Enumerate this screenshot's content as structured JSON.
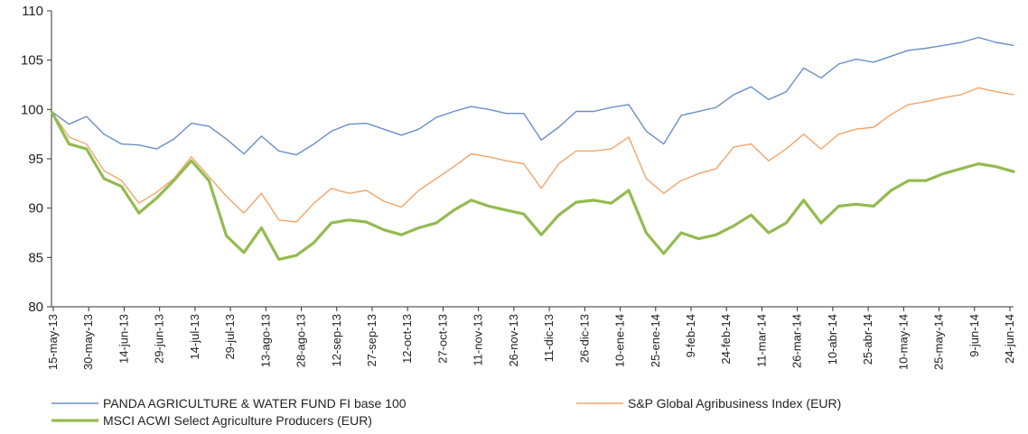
{
  "chart_data": {
    "type": "line",
    "title": "",
    "xlabel": "",
    "ylabel": "",
    "ylim": [
      80,
      110
    ],
    "yticks": [
      "80",
      "85",
      "90",
      "95",
      "100",
      "105",
      "110"
    ],
    "grid": false,
    "legend_position": "bottom",
    "x_labels": [
      "15-may-13",
      "30-may-13",
      "14-jun-13",
      "29-jun-13",
      "14-jul-13",
      "29-jul-13",
      "13-ago-13",
      "28-ago-13",
      "12-sep-13",
      "27-sep-13",
      "12-oct-13",
      "27-oct-13",
      "11-nov-13",
      "26-nov-13",
      "11-dic-13",
      "26-dic-13",
      "10-ene-14",
      "25-ene-14",
      "9-feb-14",
      "24-feb-14",
      "11-mar-14",
      "26-mar-14",
      "10-abr-14",
      "25-abr-14",
      "10-may-14",
      "25-may-14",
      "9-jun-14",
      "24-jun-14"
    ],
    "x": [
      "15-may-13",
      "22-may-13",
      "30-may-13",
      "7-jun-13",
      "14-jun-13",
      "22-jun-13",
      "29-jun-13",
      "6-jul-13",
      "14-jul-13",
      "22-jul-13",
      "29-jul-13",
      "6-ago-13",
      "13-ago-13",
      "21-ago-13",
      "28-ago-13",
      "5-sep-13",
      "12-sep-13",
      "20-sep-13",
      "27-sep-13",
      "5-oct-13",
      "12-oct-13",
      "20-oct-13",
      "27-oct-13",
      "4-nov-13",
      "11-nov-13",
      "19-nov-13",
      "26-nov-13",
      "4-dic-13",
      "11-dic-13",
      "19-dic-13",
      "26-dic-13",
      "3-ene-14",
      "10-ene-14",
      "18-ene-14",
      "25-ene-14",
      "2-feb-14",
      "9-feb-14",
      "17-feb-14",
      "24-feb-14",
      "4-mar-14",
      "11-mar-14",
      "19-mar-14",
      "26-mar-14",
      "3-abr-14",
      "10-abr-14",
      "18-abr-14",
      "25-abr-14",
      "3-may-14",
      "10-may-14",
      "18-may-14",
      "25-may-14",
      "2-jun-14",
      "9-jun-14",
      "17-jun-14",
      "24-jun-14",
      "30-jun-14"
    ],
    "series": [
      {
        "name": "PANDA AGRICULTURE & WATER FUND FI base 100",
        "color": "#6a8ec7",
        "width": 1.4,
        "values": [
          99.8,
          98.5,
          99.3,
          97.5,
          96.5,
          96.4,
          96.0,
          97.0,
          98.6,
          98.3,
          97.0,
          95.5,
          97.3,
          95.8,
          95.4,
          96.5,
          97.8,
          98.5,
          98.6,
          98.0,
          97.4,
          98.0,
          99.2,
          99.8,
          100.3,
          100.0,
          99.6,
          99.6,
          96.9,
          98.2,
          99.8,
          99.8,
          100.2,
          100.5,
          97.8,
          96.5,
          99.4,
          99.8,
          100.2,
          101.5,
          102.3,
          101.0,
          101.8,
          104.2,
          103.2,
          104.6,
          105.1,
          104.8,
          105.4,
          106.0,
          106.2,
          106.5,
          106.8,
          107.3,
          106.8,
          106.5
        ]
      },
      {
        "name": "S&P Global Agribusiness Index (EUR)",
        "color": "#f2a56a",
        "width": 1.4,
        "values": [
          99.8,
          97.2,
          96.5,
          93.8,
          92.8,
          90.5,
          91.6,
          93.0,
          95.2,
          93.2,
          91.2,
          89.5,
          91.5,
          88.8,
          88.6,
          90.5,
          92.0,
          91.5,
          91.8,
          90.7,
          90.1,
          91.8,
          93.0,
          94.2,
          95.5,
          95.2,
          94.8,
          94.5,
          92.0,
          94.5,
          95.8,
          95.8,
          96.0,
          97.2,
          93.0,
          91.5,
          92.8,
          93.5,
          94.0,
          96.2,
          96.5,
          94.8,
          96.0,
          97.5,
          96.0,
          97.5,
          98.0,
          98.2,
          99.5,
          100.5,
          100.8,
          101.2,
          101.5,
          102.2,
          101.8,
          101.5
        ]
      },
      {
        "name": "MSCI ACWI Select Agriculture Producers (EUR)",
        "color": "#93bb50",
        "width": 3.2,
        "values": [
          99.8,
          96.5,
          96.0,
          93.0,
          92.2,
          89.5,
          91.0,
          92.8,
          94.8,
          92.8,
          87.2,
          85.5,
          88.0,
          84.8,
          85.2,
          86.5,
          88.5,
          88.8,
          88.6,
          87.8,
          87.3,
          88.0,
          88.5,
          89.8,
          90.8,
          90.2,
          89.8,
          89.4,
          87.3,
          89.3,
          90.6,
          90.8,
          90.5,
          91.8,
          87.5,
          85.4,
          87.5,
          86.9,
          87.3,
          88.2,
          89.3,
          87.5,
          88.5,
          90.8,
          88.5,
          90.2,
          90.4,
          90.2,
          91.8,
          92.8,
          92.8,
          93.5,
          94.0,
          94.5,
          94.2,
          93.7
        ]
      }
    ]
  }
}
